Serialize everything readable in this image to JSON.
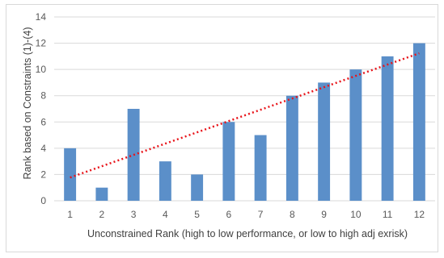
{
  "chart_data": {
    "type": "bar",
    "title": "",
    "xlabel": "Unconstrained Rank (high to low performance, or low to high adj exrisk)",
    "ylabel": "Rank based on Constraints (1)-(4)",
    "categories": [
      "1",
      "2",
      "3",
      "4",
      "5",
      "6",
      "7",
      "8",
      "9",
      "10",
      "11",
      "12"
    ],
    "values": [
      4,
      1,
      7,
      3,
      2,
      6,
      5,
      8,
      9,
      10,
      11,
      12
    ],
    "ylim": [
      0,
      14
    ],
    "yticks": [
      "0",
      "2",
      "4",
      "6",
      "8",
      "10",
      "12",
      "14"
    ],
    "grid": true,
    "legend": "none",
    "trendline": {
      "type": "linear",
      "style": "dotted",
      "start": 1,
      "end": 12
    },
    "colors": {
      "bar": "#5b8fc9",
      "trendline": "#e8141a",
      "grid": "#d9d9d9",
      "text": "#595959"
    }
  }
}
